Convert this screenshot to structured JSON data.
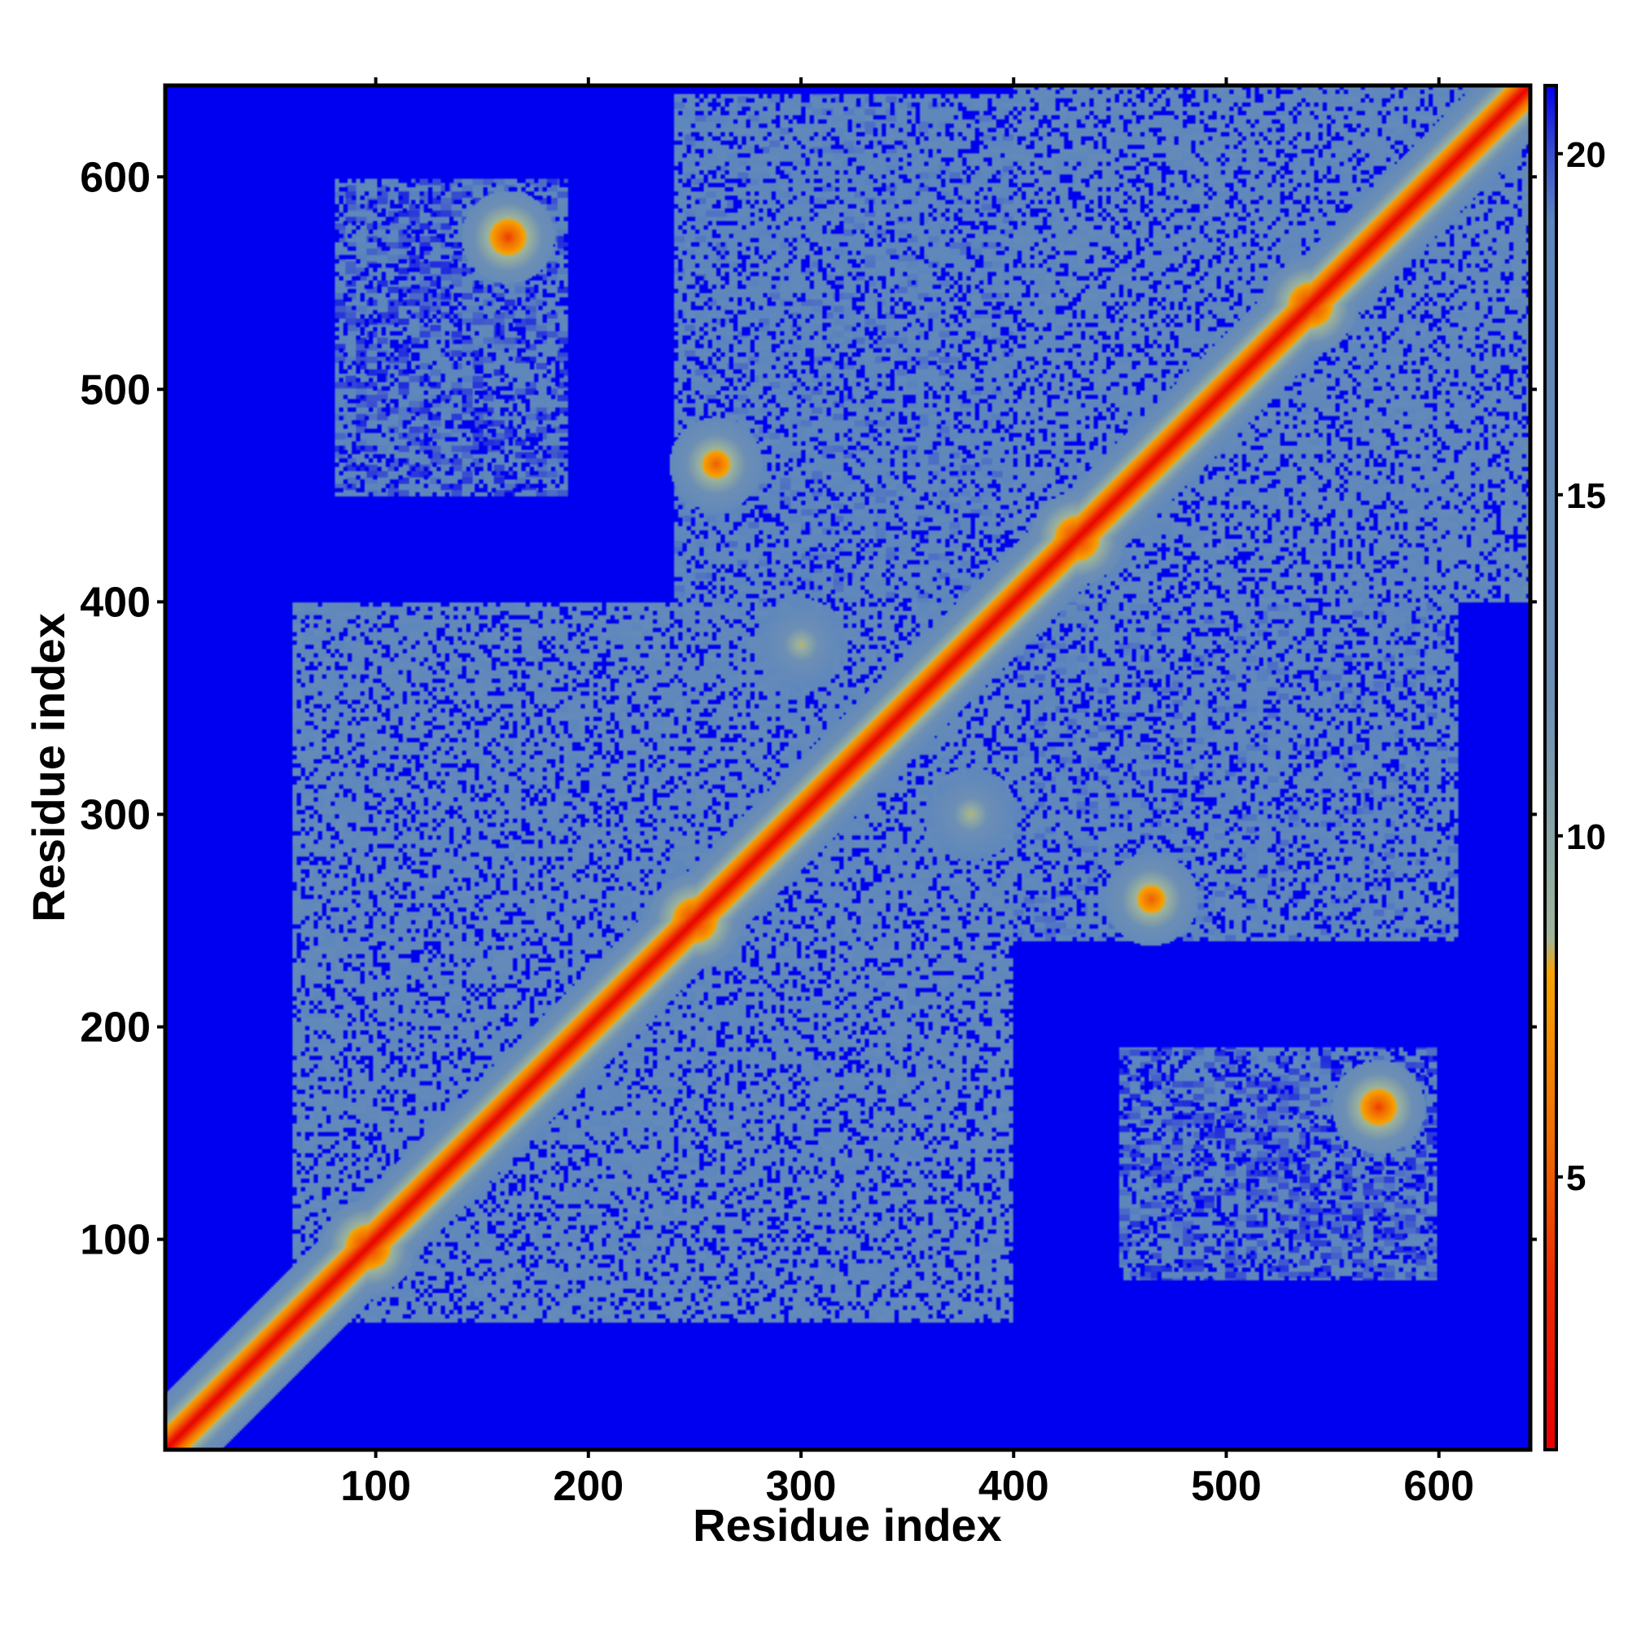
{
  "chart_data": {
    "type": "heatmap",
    "title": "",
    "xlabel": "Residue index",
    "ylabel": "Residue index",
    "xlim": [
      1,
      643
    ],
    "ylim": [
      1,
      643
    ],
    "xticks": [
      100,
      200,
      300,
      400,
      500,
      600
    ],
    "yticks": [
      100,
      200,
      300,
      400,
      500,
      600
    ],
    "x_tick_labels": [
      "100",
      "200",
      "300",
      "400",
      "500",
      "600"
    ],
    "y_tick_labels": [
      "100",
      "200",
      "300",
      "400",
      "500",
      "600"
    ],
    "grid": false,
    "colorbar": {
      "range": [
        1,
        21
      ],
      "ticks": [
        5,
        10,
        15,
        20
      ],
      "tick_labels": [
        "5",
        "10",
        "15",
        "20"
      ],
      "stops": [
        {
          "value": 1,
          "color": "#e80000"
        },
        {
          "value": 3.5,
          "color": "#ee2a00"
        },
        {
          "value": 5.5,
          "color": "#f26a00"
        },
        {
          "value": 8,
          "color": "#f7a400"
        },
        {
          "value": 8.5,
          "color": "#9fb59a"
        },
        {
          "value": 12,
          "color": "#6d8fb5"
        },
        {
          "value": 19,
          "color": "#5c86bd"
        },
        {
          "value": 20,
          "color": "#3a4fd0"
        },
        {
          "value": 21,
          "color": "#0000f0"
        }
      ]
    },
    "description_values": {
      "diagonal_distance": 1,
      "background_distance": 21,
      "domains": [
        {
          "start": 60,
          "end": 400,
          "level": 17
        },
        {
          "start": 400,
          "end": 643,
          "level": 17
        }
      ],
      "inter_domain_blocks": [
        {
          "x": [
            240,
            400
          ],
          "y": [
            400,
            640
          ],
          "level": 18
        },
        {
          "x": [
            400,
            610
          ],
          "y": [
            240,
            400
          ],
          "level": 18
        },
        {
          "x": [
            80,
            190
          ],
          "y": [
            450,
            600
          ],
          "level": 19
        },
        {
          "x": [
            450,
            600
          ],
          "y": [
            80,
            190
          ],
          "level": 19
        }
      ],
      "contact_hotspots": [
        {
          "x": 96,
          "y": 96,
          "value": 3
        },
        {
          "x": 250,
          "y": 250,
          "value": 3
        },
        {
          "x": 430,
          "y": 430,
          "value": 3
        },
        {
          "x": 540,
          "y": 540,
          "value": 3
        },
        {
          "x": 162,
          "y": 572,
          "value": 4
        },
        {
          "x": 572,
          "y": 162,
          "value": 4
        },
        {
          "x": 260,
          "y": 465,
          "value": 5
        },
        {
          "x": 465,
          "y": 260,
          "value": 5
        },
        {
          "x": 380,
          "y": 300,
          "value": 8
        },
        {
          "x": 300,
          "y": 380,
          "value": 8
        }
      ]
    }
  }
}
